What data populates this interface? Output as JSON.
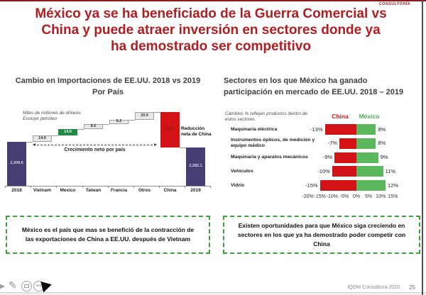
{
  "header": {
    "brand": "CONSULTORÍA",
    "title_lines": [
      "México ya se ha beneficiado de la Guerra Comercial vs",
      "China y puede atraer inversión en sectores donde ya",
      "ha demostrado ser competitivo"
    ],
    "title_color": "#b21d22"
  },
  "takeaways": {
    "left": "México es el país que mas se benefició de la contracción de las exportaciones de China a EE.UU. después de Vietnam",
    "right": "Existen oportunidades para que México siga creciendo en sectores en los que ya ha demostrado poder competir con China",
    "border_color": "#3f9c3f"
  },
  "footer": {
    "credit": "IQOM Consultoria 2020",
    "page": "25",
    "icons": [
      "nav-arrow-icon",
      "pen-icon",
      "slideshow-icon",
      "more-options-icon",
      "mouse-cursor"
    ]
  },
  "chart_data": [
    {
      "type": "waterfall",
      "title_lines": [
        "Cambio en Importaciones de EE.UU. 2018 vs 2019",
        "Por País"
      ],
      "units_note": [
        "Miles de millones de dólares",
        "Excluye petróleo"
      ],
      "net_growth_label": "Crecimiento neto por país",
      "china_reduction_label": "Reducción neta de China",
      "columns": [
        {
          "label": "2018",
          "kind": "total",
          "value": 2309.6,
          "display": "2,309.6",
          "color": "#463e72",
          "text": "#dcd8ea",
          "px": 62
        },
        {
          "label": "Vietnam",
          "kind": "increase",
          "value": 14.9,
          "display": "14.9",
          "color": "#e8e8e8",
          "text": "#333333",
          "px": 9
        },
        {
          "label": "Mexico",
          "kind": "increase",
          "value": 14.0,
          "display": "14.0",
          "color": "#218a44",
          "text": "#ffffff",
          "px": 9
        },
        {
          "label": "Taiwan",
          "kind": "increase",
          "value": 8.6,
          "display": "8.6",
          "color": "#e8e8e8",
          "text": "#333333",
          "px": 7
        },
        {
          "label": "Francia",
          "kind": "increase",
          "value": 5.2,
          "display": "5.2",
          "color": "#e8e8e8",
          "text": "#333333",
          "px": 6
        },
        {
          "label": "Otros",
          "kind": "increase",
          "value": 20.9,
          "display": "20.9",
          "color": "#e8e8e8",
          "text": "#333333",
          "px": 11
        },
        {
          "label": "China",
          "kind": "decrease",
          "value": -91.0,
          "display": "91.0",
          "color": "#d31216",
          "text": "#8f0f12",
          "px": 50
        },
        {
          "label": "2019",
          "kind": "total_end",
          "value": 2282.1,
          "display": "2,282.1",
          "color": "#463e72",
          "text": "#dcd8ea"
        }
      ]
    },
    {
      "type": "bar",
      "orientation": "horizontal",
      "title_lines": [
        "Sectores en los que México ha ganado",
        "participación en mercado de EE.UU. 2018 – 2019"
      ],
      "note_lines": [
        "Cambios % reflejan productos dentro de",
        "estos sectores"
      ],
      "categories": [
        "Maquinaria eléctrica",
        "Instrumentos ópticos, de medición y equipo médico",
        "Maquinaria y aparatos mecánicos",
        "Vehículos",
        "Vidrio"
      ],
      "series": [
        {
          "name": "China",
          "color": "#cc1a1c",
          "bar_color": "#d31216",
          "values": [
            -13,
            -7,
            -9,
            -10,
            -15
          ],
          "labels": [
            "-13%",
            "-7%",
            "-9%",
            "-10%",
            "-15%"
          ]
        },
        {
          "name": "México",
          "color": "#4caf50",
          "bar_color": "#5cb85c",
          "values": [
            8,
            8,
            9,
            11,
            12
          ],
          "labels": [
            "8%",
            "8%",
            "9%",
            "11%",
            "12%"
          ]
        }
      ],
      "xlim": [
        -20,
        15
      ],
      "x_ticks": [
        "-20%",
        "-15%",
        "-10%",
        "-5%",
        "0%",
        "5%",
        "10%",
        "15%"
      ],
      "legend_position": "top"
    }
  ]
}
